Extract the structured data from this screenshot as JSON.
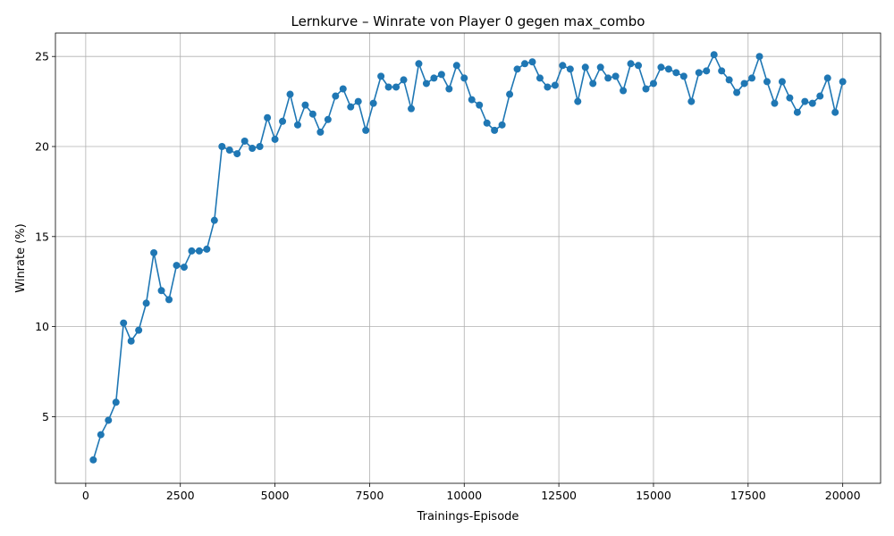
{
  "chart_data": {
    "type": "line",
    "title": "Lernkurve – Winrate von Player 0 gegen max_combo",
    "xlabel": "Trainings-Episode",
    "ylabel": "Winrate (%)",
    "xlim": [
      -800,
      21000
    ],
    "ylim": [
      1.3,
      26.3
    ],
    "xticks": [
      0,
      2500,
      5000,
      7500,
      10000,
      12500,
      15000,
      17500,
      20000
    ],
    "yticks": [
      5,
      10,
      15,
      20,
      25
    ],
    "grid": true,
    "color": "#1f77b4",
    "series": [
      {
        "x": [
          200,
          400,
          600,
          800,
          1000,
          1200,
          1400,
          1600,
          1800,
          2000,
          2200,
          2400,
          2600,
          2800,
          3000,
          3200,
          3400,
          3600,
          3800,
          4000,
          4200,
          4400,
          4600,
          4800,
          5000,
          5200,
          5400,
          5600,
          5800,
          6000,
          6200,
          6400,
          6600,
          6800,
          7000,
          7200,
          7400,
          7600,
          7800,
          8000,
          8200,
          8400,
          8600,
          8800,
          9000,
          9200,
          9400,
          9600,
          9800,
          10000,
          10200,
          10400,
          10600,
          10800,
          11000,
          11200,
          11400,
          11600,
          11800,
          12000,
          12200,
          12400,
          12600,
          12800,
          13000,
          13200,
          13400,
          13600,
          13800,
          14000,
          14200,
          14400,
          14600,
          14800,
          15000,
          15200,
          15400,
          15600,
          15800,
          16000,
          16200,
          16400,
          16600,
          16800,
          17000,
          17200,
          17400,
          17600,
          17800,
          18000,
          18200,
          18400,
          18600,
          18800,
          19000,
          19200,
          19400,
          19600,
          19800,
          20000
        ],
        "y": [
          2.6,
          4.0,
          4.8,
          5.8,
          10.2,
          9.2,
          9.8,
          11.3,
          14.1,
          12.0,
          11.5,
          13.4,
          13.3,
          14.2,
          14.2,
          14.3,
          15.9,
          20.0,
          19.8,
          19.6,
          20.3,
          19.9,
          20.0,
          21.6,
          20.4,
          21.4,
          22.9,
          21.2,
          22.3,
          21.8,
          20.8,
          21.5,
          22.8,
          23.2,
          22.2,
          22.5,
          20.9,
          22.4,
          23.9,
          23.3,
          23.3,
          23.7,
          22.1,
          24.6,
          23.5,
          23.8,
          24.0,
          23.2,
          24.5,
          23.8,
          22.6,
          22.3,
          21.3,
          20.9,
          21.2,
          22.9,
          24.3,
          24.6,
          24.7,
          23.8,
          23.3,
          23.4,
          24.5,
          24.3,
          22.5,
          24.4,
          23.5,
          24.4,
          23.8,
          23.9,
          23.1,
          24.6,
          24.5,
          23.2,
          23.5,
          24.4,
          24.3,
          24.1,
          23.9,
          22.5,
          24.1,
          24.2,
          25.1,
          24.2,
          23.7,
          23.0,
          23.5,
          23.8,
          25.0,
          23.6,
          22.4,
          23.6,
          22.7,
          21.9,
          22.5,
          22.4,
          22.8,
          23.8,
          21.9,
          23.6
        ]
      }
    ]
  }
}
